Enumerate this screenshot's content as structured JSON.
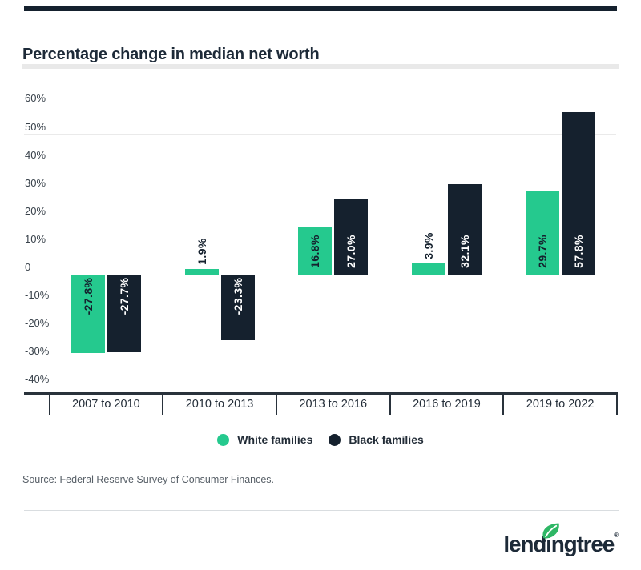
{
  "chart_data": {
    "type": "bar",
    "title": "Percentage change in median net worth",
    "categories": [
      "2007 to 2010",
      "2010 to 2013",
      "2013 to 2016",
      "2016 to 2019",
      "2019 to 2022"
    ],
    "series": [
      {
        "name": "White families",
        "color": "#25c98e",
        "values": [
          -27.8,
          1.9,
          16.8,
          3.9,
          29.7
        ],
        "value_labels": [
          "-27.8%",
          "1.9%",
          "16.8%",
          "3.9%",
          "29.7%"
        ]
      },
      {
        "name": "Black families",
        "color": "#15212e",
        "values": [
          -27.7,
          -23.3,
          27.0,
          32.1,
          57.8
        ],
        "value_labels": [
          "-27.7%",
          "-23.3%",
          "27.0%",
          "32.1%",
          "57.8%"
        ]
      }
    ],
    "y_ticks": [
      {
        "label": "60%",
        "value": 60
      },
      {
        "label": "50%",
        "value": 50
      },
      {
        "label": "40%",
        "value": 40
      },
      {
        "label": "30%",
        "value": 30
      },
      {
        "label": "20%",
        "value": 20
      },
      {
        "label": "10%",
        "value": 10
      },
      {
        "label": "0",
        "value": 0
      },
      {
        "label": "-10%",
        "value": -10
      },
      {
        "label": "-20%",
        "value": -20
      },
      {
        "label": "-30%",
        "value": -30
      },
      {
        "label": "-40%",
        "value": -40
      }
    ],
    "ylim": [
      -40,
      60
    ],
    "grid": true,
    "legend_position": "bottom"
  },
  "legend": {
    "items": [
      {
        "label": "White families",
        "color": "#25c98e",
        "icon": "circle"
      },
      {
        "label": "Black families",
        "color": "#15212e",
        "icon": "circle"
      }
    ]
  },
  "source": {
    "text": "Source: Federal Reserve Survey of Consumer Finances."
  },
  "logo": {
    "wordmark": "lendingtree",
    "registered_mark": "®"
  },
  "colors": {
    "accent_green": "#25c98e",
    "brand_navy": "#15212e",
    "gridline": "#eaeaea",
    "rule_gray": "#e9e9e9"
  }
}
